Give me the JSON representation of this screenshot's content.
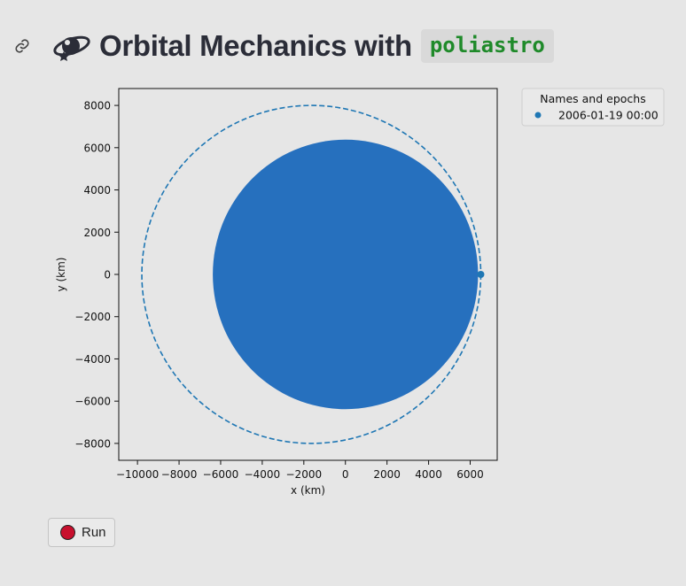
{
  "header": {
    "title": "Orbital Mechanics with",
    "code": "poliastro",
    "link_icon": "link-icon",
    "logo_icon": "orbit-logo-icon"
  },
  "run_button": {
    "label": "Run",
    "dot_color": "#c8102e"
  },
  "chart_data": {
    "type": "scatter",
    "xlabel": "x (km)",
    "ylabel": "y (km)",
    "xlim": [
      -10900,
      7300
    ],
    "ylim": [
      -8800,
      8800
    ],
    "xticks": [
      -10000,
      -8000,
      -6000,
      -4000,
      -2000,
      0,
      2000,
      4000,
      6000
    ],
    "yticks": [
      -8000,
      -6000,
      -4000,
      -2000,
      0,
      2000,
      4000,
      6000,
      8000
    ],
    "grid": false,
    "legend": {
      "title": "Names and epochs",
      "placement": "outside-top-right",
      "entries": [
        {
          "label": "2006-01-19 00:00",
          "color": "#1f77b4"
        }
      ]
    },
    "attractor": {
      "center": [
        0,
        0
      ],
      "radius": 6378,
      "color": "#2670be"
    },
    "orbit": {
      "center": [
        -1640,
        0
      ],
      "semi_major_axis": 8150,
      "semi_minor_axis": 8000,
      "style": "dashed",
      "color": "#1f77b4"
    },
    "position": {
      "x": 6510,
      "y": 0,
      "color": "#1f77b4"
    }
  }
}
